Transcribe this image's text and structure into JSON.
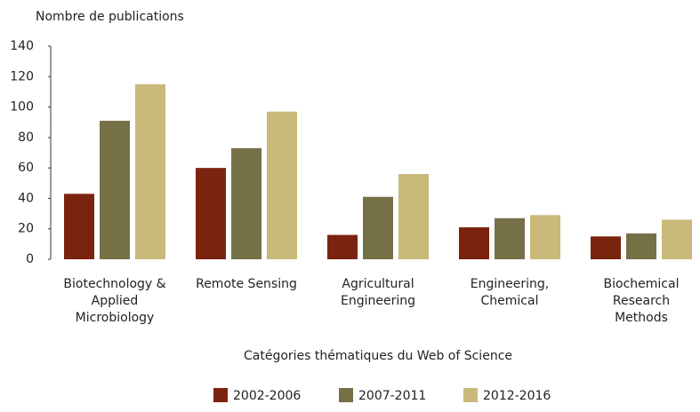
{
  "chart_data": {
    "type": "bar",
    "y_label": "Nombre de publications",
    "x_label": "Catégories thématiques du Web of Science",
    "categories": [
      "Biotechnology &\nApplied\nMicrobiology",
      "Remote Sensing",
      "Agricultural\nEngineering",
      "Engineering,\nChemical",
      "Biochemical\nResearch\nMethods"
    ],
    "series": [
      {
        "name": "2002-2006",
        "color": "#7a2410",
        "values": [
          43,
          60,
          16,
          21,
          15
        ]
      },
      {
        "name": "2007-2011",
        "color": "#767047",
        "values": [
          91,
          73,
          41,
          27,
          17
        ]
      },
      {
        "name": "2012-2016",
        "color": "#c9b97a",
        "values": [
          115,
          97,
          56,
          29,
          26
        ]
      }
    ],
    "ylim": [
      0,
      140
    ],
    "yticks": [
      0,
      20,
      40,
      60,
      80,
      100,
      120,
      140
    ],
    "legend": "bottom"
  }
}
